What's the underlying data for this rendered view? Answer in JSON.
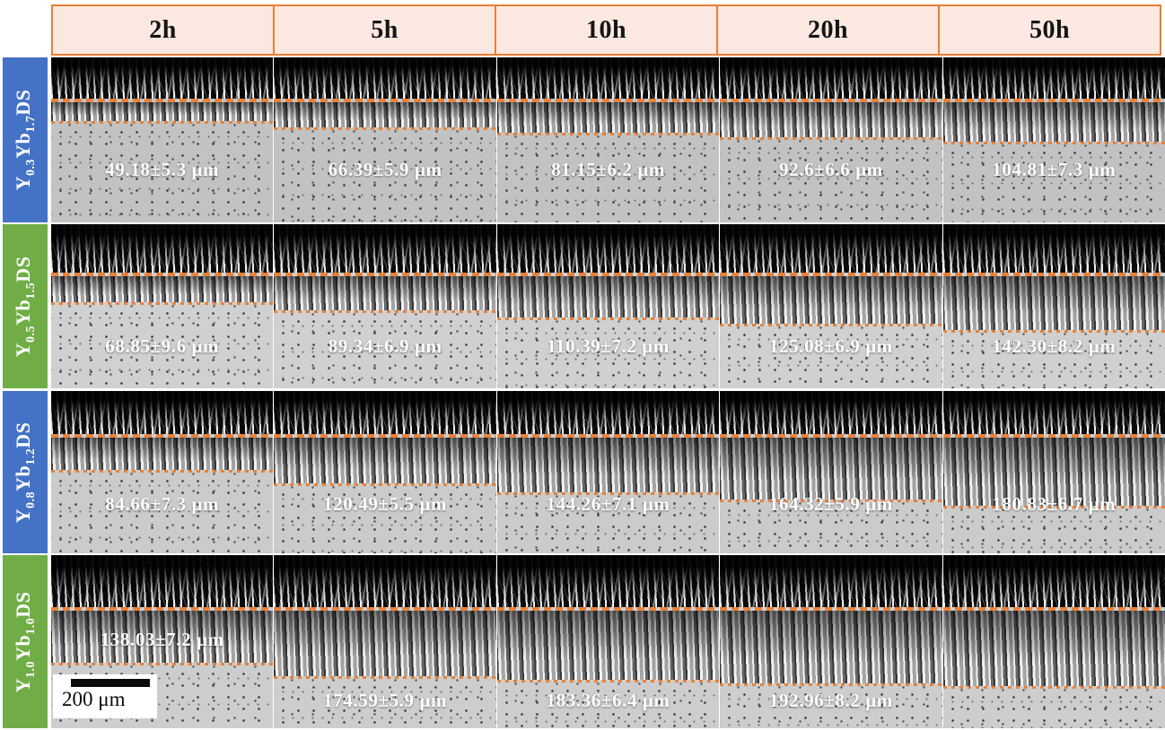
{
  "columns": [
    {
      "label": "2h"
    },
    {
      "label": "5h"
    },
    {
      "label": "10h"
    },
    {
      "label": "20h"
    },
    {
      "label": "50h"
    }
  ],
  "rows": [
    {
      "label": {
        "base1": "Y",
        "sub1": "0.3",
        "base2": "Yb",
        "sub2": "1.7",
        "base3": "DS"
      },
      "label_color": "#4472c4",
      "cells": [
        {
          "measurement": "49.18±5.3 μm"
        },
        {
          "measurement": "66.39±5.9 μm"
        },
        {
          "measurement": "81.15±6.2 μm"
        },
        {
          "measurement": "92.6±6.6 μm"
        },
        {
          "measurement": "104.81±7.3 μm"
        }
      ]
    },
    {
      "label": {
        "base1": "Y",
        "sub1": "0.5",
        "base2": "Yb",
        "sub2": "1.5",
        "base3": "DS"
      },
      "label_color": "#70ad47",
      "cells": [
        {
          "measurement": "68.85±9.6 μm"
        },
        {
          "measurement": "89.34±6.9 μm"
        },
        {
          "measurement": "110.39±7.2 μm"
        },
        {
          "measurement": "125.08±6.9 μm"
        },
        {
          "measurement": "142.30±8.2 μm"
        }
      ]
    },
    {
      "label": {
        "base1": "Y",
        "sub1": "0.8",
        "base2": "Yb",
        "sub2": "1.2",
        "base3": "DS"
      },
      "label_color": "#4472c4",
      "cells": [
        {
          "measurement": "84.66±7.3 μm"
        },
        {
          "measurement": "120.49±5.5 μm"
        },
        {
          "measurement": "144.26±7.1 μm"
        },
        {
          "measurement": "164.32±5.9 μm"
        },
        {
          "measurement": "180.83±6.7 μm"
        }
      ]
    },
    {
      "label": {
        "base1": "Y",
        "sub1": "1.0",
        "base2": "Yb",
        "sub2": "1.0",
        "base3": "DS"
      },
      "label_color": "#70ad47",
      "cells": [
        {
          "measurement": "138.03±7.2 μm"
        },
        {
          "measurement": "174.59±5.9 μm"
        },
        {
          "measurement": "183.36±6.4 μm"
        },
        {
          "measurement": "192.96±8.2 μm"
        },
        {
          "measurement": ""
        }
      ]
    }
  ],
  "scale_bar": {
    "label": "200 μm"
  },
  "colors": {
    "header_bg": "#fbe8e0",
    "header_border": "#e87e36",
    "label_blue": "#4472c4",
    "label_green": "#70ad47",
    "interface_line": "#e8813a",
    "measurement_text": "#ffffff"
  }
}
